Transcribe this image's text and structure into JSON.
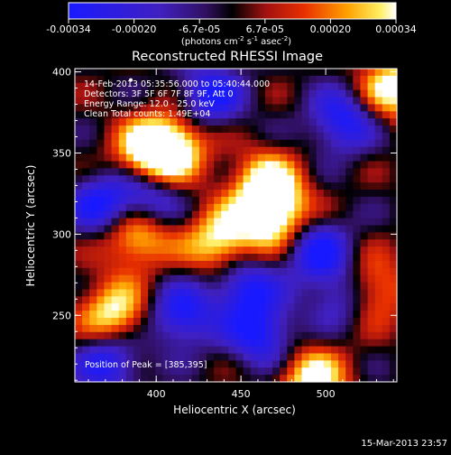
{
  "chart_data": {
    "type": "heatmap",
    "title": "Reconstructed RHESSI Image",
    "xlabel": "Heliocentric X (arcsec)",
    "ylabel": "Heliocentric Y (arcsec)",
    "xlim": [
      352,
      542
    ],
    "ylim": [
      209,
      402
    ],
    "x_ticks": [
      "400",
      "450",
      "500"
    ],
    "y_ticks": [
      "250",
      "300",
      "350",
      "400"
    ],
    "colorbar": {
      "range": [
        -0.00034,
        0.00034
      ],
      "tick_labels": [
        "-0.00034",
        "-0.00020",
        "-6.7e-05",
        "6.7e-05",
        "0.00020",
        "0.00034"
      ],
      "unit_main": "(photons cm",
      "unit_exp1": "-2",
      "unit_mid": " s",
      "unit_exp2": "-1",
      "unit_end": " asec",
      "unit_exp3": "-2",
      "unit_close": ")"
    },
    "annotations": {
      "time": "14-Feb-2013 05:35:56.000 to 05:40:44.000",
      "detectors": "Detectors: 3F 5F 6F 7F 8F 9F, Att 0",
      "energy": "Energy Range: 12.0 - 25.0 keV",
      "clean": "Clean     Total counts: 1.49E+04",
      "peak": "Position of Peak = [385,395]"
    },
    "peak_position": [
      385,
      395
    ],
    "total_counts": "1.49E+04",
    "energy_range_kev": [
      12.0,
      25.0
    ],
    "intensity_range": [
      -0.00034,
      0.00034
    ],
    "blue_minima": [
      [
        395,
        322
      ],
      [
        432,
        385
      ],
      [
        495,
        290
      ],
      [
        510,
        370
      ],
      [
        415,
        250
      ],
      [
        462,
        238
      ],
      [
        512,
        262
      ],
      [
        372,
        222
      ],
      [
        368,
        318
      ],
      [
        452,
        268
      ]
    ],
    "bright_maxima": [
      [
        388,
        300
      ],
      [
        410,
        355
      ],
      [
        492,
        210
      ],
      [
        465,
        330
      ],
      [
        540,
        390
      ],
      [
        395,
        348
      ],
      [
        438,
        295
      ],
      [
        470,
        310
      ],
      [
        525,
        265
      ],
      [
        375,
        250
      ]
    ]
  },
  "footer_date": "15-Mar-2013 23:57"
}
